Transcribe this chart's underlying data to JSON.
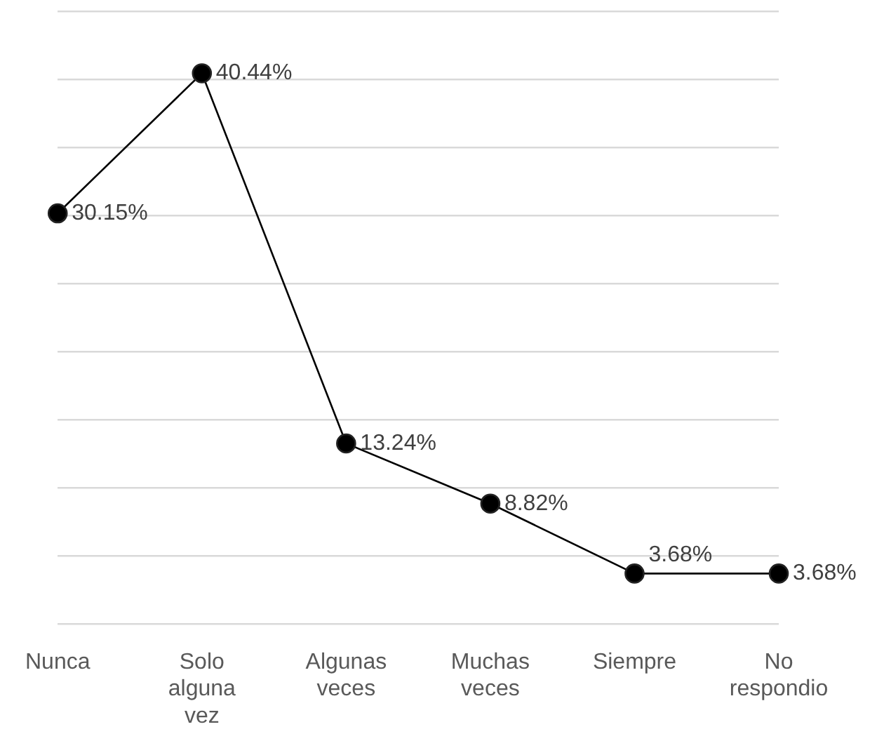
{
  "chart_data": {
    "type": "line",
    "categories": [
      "Nunca",
      "Solo alguna vez",
      "Algunas veces",
      "Muchas veces",
      "Siempre",
      "No respondio"
    ],
    "series": [
      {
        "color": "#000000",
        "values": [
          30.15,
          40.44,
          13.24,
          8.82,
          3.68,
          3.68
        ],
        "value_labels": [
          "30.15%",
          "40.44%",
          "13.24%",
          "8.82%",
          "3.68%",
          "3.68%"
        ]
      }
    ],
    "ylim": [
      0,
      45
    ],
    "yticks": [
      {
        "value": 0,
        "label": null
      },
      {
        "value": 5,
        "label": null
      },
      {
        "value": 10,
        "label": null
      },
      {
        "value": 15,
        "label": null
      },
      {
        "value": 20,
        "label": null
      },
      {
        "value": 25,
        "label": null
      },
      {
        "value": 30,
        "label": null
      },
      {
        "value": 35,
        "label": null
      },
      {
        "value": 40,
        "label": null
      },
      {
        "value": 45,
        "label": null
      }
    ],
    "tick_labels": "x",
    "grid": "y",
    "legend": false,
    "marker": "circle",
    "line_style": "solid"
  }
}
